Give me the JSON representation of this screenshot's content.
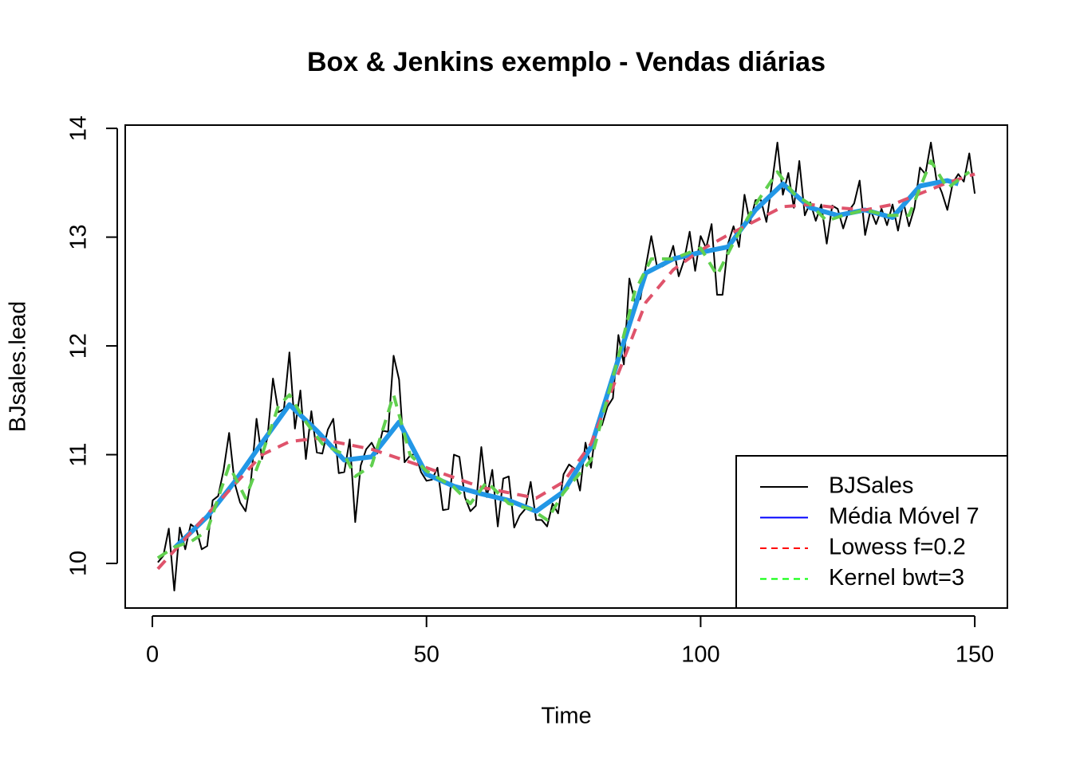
{
  "chart_data": {
    "type": "line",
    "title": "Box & Jenkins exemplo - Vendas diárias",
    "x_label": "Time",
    "y_label": "BJsales.lead",
    "xlim": [
      -4.95,
      155.95
    ],
    "ylim": [
      9.59,
      14.03
    ],
    "xticks": [
      0,
      50,
      100,
      150
    ],
    "yticks": [
      10,
      11,
      12,
      13,
      14
    ],
    "legend_position": "bottom-right",
    "series": [
      {
        "name": "BJSales",
        "color": "#000000",
        "legend_color": "#000000",
        "dash": "solid",
        "width": 2,
        "x": [
          1,
          2,
          3,
          4,
          5,
          6,
          7,
          8,
          9,
          10,
          11,
          12,
          13,
          14,
          15,
          16,
          17,
          18,
          19,
          20,
          21,
          22,
          23,
          24,
          25,
          26,
          27,
          28,
          29,
          30,
          31,
          32,
          33,
          34,
          35,
          36,
          37,
          38,
          39,
          40,
          41,
          42,
          43,
          44,
          45,
          46,
          47,
          48,
          49,
          50,
          51,
          52,
          53,
          54,
          55,
          56,
          57,
          58,
          59,
          60,
          61,
          62,
          63,
          64,
          65,
          66,
          67,
          68,
          69,
          70,
          71,
          72,
          73,
          74,
          75,
          76,
          77,
          78,
          79,
          80,
          81,
          82,
          83,
          84,
          85,
          86,
          87,
          88,
          89,
          90,
          91,
          92,
          93,
          94,
          95,
          96,
          97,
          98,
          99,
          100,
          101,
          102,
          103,
          104,
          105,
          106,
          107,
          108,
          109,
          110,
          111,
          112,
          113,
          114,
          115,
          116,
          117,
          118,
          119,
          120,
          121,
          122,
          123,
          124,
          125,
          126,
          127,
          128,
          129,
          130,
          131,
          132,
          133,
          134,
          135,
          136,
          137,
          138,
          139,
          140,
          141,
          142,
          143,
          144,
          145,
          146,
          147,
          148,
          149,
          150
        ],
        "values": [
          10.01,
          10.07,
          10.32,
          9.75,
          10.33,
          10.13,
          10.36,
          10.32,
          10.13,
          10.16,
          10.58,
          10.62,
          10.86,
          11.2,
          10.74,
          10.56,
          10.48,
          10.77,
          11.33,
          10.96,
          11.16,
          11.7,
          11.39,
          11.42,
          11.94,
          11.24,
          11.59,
          10.96,
          11.4,
          11.02,
          11.01,
          11.23,
          11.33,
          10.83,
          10.84,
          11.14,
          10.38,
          10.9,
          11.05,
          11.11,
          11.01,
          11.22,
          11.21,
          11.91,
          11.69,
          10.93,
          10.99,
          11.01,
          10.84,
          10.76,
          10.77,
          10.88,
          10.49,
          10.5,
          11,
          10.98,
          10.61,
          10.48,
          10.53,
          11.07,
          10.61,
          10.86,
          10.34,
          10.78,
          10.8,
          10.33,
          10.44,
          10.5,
          10.75,
          10.4,
          10.4,
          10.34,
          10.55,
          10.46,
          10.82,
          10.91,
          10.87,
          10.67,
          11.11,
          10.88,
          11.28,
          11.27,
          11.44,
          11.52,
          12.1,
          11.83,
          12.62,
          12.41,
          12.43,
          12.73,
          13.01,
          12.74,
          12.73,
          12.76,
          12.92,
          12.64,
          12.79,
          13.05,
          12.69,
          13.01,
          12.9,
          13.12,
          12.47,
          12.47,
          12.94,
          13.1,
          12.91,
          13.39,
          13.13,
          13.34,
          13.34,
          13.14,
          13.49,
          13.87,
          13.39,
          13.59,
          13.27,
          13.7,
          13.2,
          13.32,
          13.15,
          13.3,
          12.94,
          13.29,
          13.26,
          13.08,
          13.24,
          13.31,
          13.52,
          13.02,
          13.25,
          13.12,
          13.26,
          13.11,
          13.3,
          13.06,
          13.32,
          13.1,
          13.27,
          13.64,
          13.58,
          13.87,
          13.53,
          13.41,
          13.25,
          13.5,
          13.58,
          13.51,
          13.77,
          13.4
        ]
      },
      {
        "name": "Média Móvel 7",
        "color": "#2297E6",
        "legend_color": "#0000FF",
        "dash": "solid",
        "width": 6,
        "x": [
          4,
          10,
          15,
          20,
          25,
          30,
          35,
          40,
          45,
          50,
          55,
          60,
          65,
          70,
          75,
          80,
          85,
          90,
          95,
          100,
          105,
          110,
          115,
          120,
          125,
          130,
          135,
          140,
          145,
          147
        ],
        "values": [
          10.14,
          10.43,
          10.75,
          11.11,
          11.46,
          11.22,
          10.95,
          10.98,
          11.3,
          10.82,
          10.71,
          10.64,
          10.58,
          10.48,
          10.66,
          11.07,
          11.88,
          12.67,
          12.8,
          12.86,
          12.91,
          13.25,
          13.49,
          13.27,
          13.2,
          13.25,
          13.18,
          13.47,
          13.52,
          13.49
        ]
      },
      {
        "name": "Lowess f=0.2",
        "color": "#DF536B",
        "legend_color": "#FF0000",
        "dash": "dashed",
        "width": 4,
        "x": [
          1,
          10,
          20,
          25,
          30,
          40,
          50,
          60,
          70,
          75,
          80,
          85,
          90,
          95,
          100,
          105,
          110,
          115,
          120,
          125,
          130,
          135,
          140,
          145,
          150
        ],
        "values": [
          9.95,
          10.45,
          11.0,
          11.12,
          11.15,
          11.05,
          10.88,
          10.7,
          10.6,
          10.75,
          11.1,
          11.75,
          12.4,
          12.7,
          12.88,
          13.02,
          13.15,
          13.28,
          13.3,
          13.27,
          13.25,
          13.3,
          13.4,
          13.5,
          13.58
        ]
      },
      {
        "name": "Kernel bwt=3",
        "color": "#61D04F",
        "legend_color": "#00FF00",
        "dash": "dashed",
        "width": 4,
        "x": [
          1,
          4,
          7,
          10,
          14,
          17,
          20,
          23,
          25,
          28,
          31,
          35,
          37,
          40,
          44,
          47,
          50,
          55,
          58,
          61,
          65,
          69,
          72,
          75,
          80,
          85,
          88,
          91,
          95,
          100,
          103,
          106,
          110,
          114,
          117,
          120,
          123,
          126,
          130,
          134,
          138,
          142,
          145,
          149
        ],
        "values": [
          10.05,
          10.15,
          10.2,
          10.3,
          10.9,
          10.6,
          11.0,
          11.45,
          11.55,
          11.3,
          11.1,
          11.0,
          10.8,
          10.9,
          11.55,
          11.0,
          10.85,
          10.7,
          10.55,
          10.75,
          10.55,
          10.5,
          10.4,
          10.65,
          10.95,
          11.9,
          12.5,
          12.8,
          12.8,
          12.9,
          12.65,
          12.95,
          13.3,
          13.6,
          13.4,
          13.3,
          13.15,
          13.2,
          13.25,
          13.2,
          13.2,
          13.7,
          13.45,
          13.6
        ]
      }
    ]
  }
}
